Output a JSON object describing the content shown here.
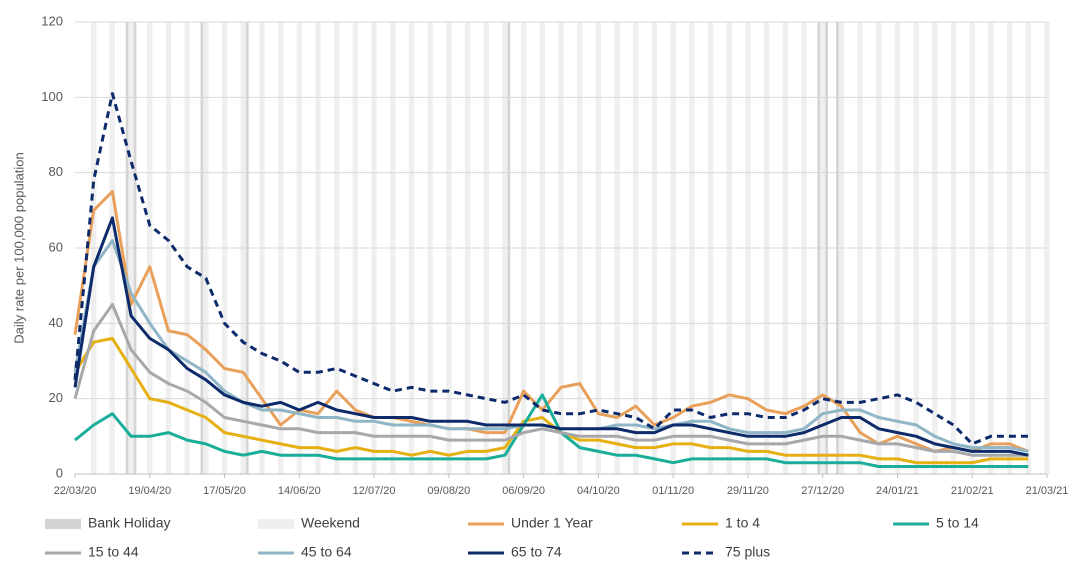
{
  "chart_data": {
    "type": "line",
    "y_label": "Daily rate per 100,000 population",
    "x": [
      "22/03/20",
      "29/03/20",
      "05/04/20",
      "12/04/20",
      "19/04/20",
      "26/04/20",
      "03/05/20",
      "10/05/20",
      "17/05/20",
      "24/05/20",
      "31/05/20",
      "07/06/20",
      "14/06/20",
      "21/06/20",
      "28/06/20",
      "05/07/20",
      "12/07/20",
      "19/07/20",
      "26/07/20",
      "02/08/20",
      "09/08/20",
      "16/08/20",
      "23/08/20",
      "30/08/20",
      "06/09/20",
      "13/09/20",
      "20/09/20",
      "27/09/20",
      "04/10/20",
      "11/10/20",
      "18/10/20",
      "25/10/20",
      "01/11/20",
      "08/11/20",
      "15/11/20",
      "22/11/20",
      "29/11/20",
      "06/12/20",
      "13/12/20",
      "20/12/20",
      "27/12/20",
      "03/01/21",
      "10/01/21",
      "17/01/21",
      "24/01/21",
      "31/01/21",
      "07/02/21",
      "14/02/21",
      "21/02/21",
      "28/02/21",
      "07/03/21",
      "14/03/21"
    ],
    "xlim": [
      "22/03/20",
      "21/03/21"
    ],
    "xticks": [
      "22/03/20",
      "19/04/20",
      "17/05/20",
      "14/06/20",
      "12/07/20",
      "09/08/20",
      "06/09/20",
      "04/10/20",
      "01/11/20",
      "29/11/20",
      "27/12/20",
      "24/01/21",
      "21/02/21",
      "21/03/21"
    ],
    "ylim": [
      0,
      120
    ],
    "yticks": [
      0,
      20,
      40,
      60,
      80,
      100,
      120
    ],
    "grid": true,
    "shading": [
      {
        "name": "Bank Holiday",
        "color": "#d4d4d4",
        "dates": [
          "10/04/20",
          "13/04/20",
          "08/05/20",
          "25/05/20",
          "31/08/20",
          "25/12/20",
          "28/12/20",
          "01/01/21"
        ]
      },
      {
        "name": "Weekend",
        "color": "#efefef"
      }
    ],
    "series": [
      {
        "name": "Under 1 Year",
        "color": "#e8a05a",
        "values": [
          37,
          70,
          75,
          45,
          55,
          38,
          37,
          33,
          28,
          27,
          20,
          13,
          17,
          16,
          22,
          17,
          15,
          15,
          14,
          13,
          12,
          12,
          11,
          11,
          22,
          17,
          23,
          24,
          16,
          15,
          18,
          13,
          15,
          18,
          19,
          21,
          20,
          17,
          16,
          18,
          21,
          18,
          11,
          8,
          10,
          8,
          6,
          7,
          6,
          8,
          8,
          6
        ]
      },
      {
        "name": "1 to 4",
        "color": "#e6b012",
        "values": [
          27,
          35,
          36,
          28,
          20,
          19,
          17,
          15,
          11,
          10,
          9,
          8,
          7,
          7,
          6,
          7,
          6,
          6,
          5,
          6,
          5,
          6,
          6,
          7,
          14,
          15,
          11,
          9,
          9,
          8,
          7,
          7,
          8,
          8,
          7,
          7,
          6,
          6,
          5,
          5,
          5,
          5,
          5,
          4,
          4,
          3,
          3,
          3,
          3,
          4,
          4,
          4
        ]
      },
      {
        "name": "5 to 14",
        "color": "#1aae9a",
        "values": [
          9,
          13,
          16,
          10,
          10,
          11,
          9,
          8,
          6,
          5,
          6,
          5,
          5,
          5,
          4,
          4,
          4,
          4,
          4,
          4,
          4,
          4,
          4,
          5,
          13,
          21,
          11,
          7,
          6,
          5,
          5,
          4,
          3,
          4,
          4,
          4,
          4,
          4,
          3,
          3,
          3,
          3,
          3,
          2,
          2,
          2,
          2,
          2,
          2,
          2,
          2,
          2
        ]
      },
      {
        "name": "15 to 44",
        "color": "#a6a8ab",
        "values": [
          20,
          38,
          45,
          33,
          27,
          24,
          22,
          19,
          15,
          14,
          13,
          12,
          12,
          11,
          11,
          11,
          10,
          10,
          10,
          10,
          9,
          9,
          9,
          9,
          11,
          12,
          11,
          10,
          10,
          10,
          9,
          9,
          10,
          10,
          10,
          9,
          8,
          8,
          8,
          9,
          10,
          10,
          9,
          8,
          8,
          7,
          6,
          6,
          5,
          5,
          5,
          5
        ]
      },
      {
        "name": "45 to 64",
        "color": "#8fb6c6",
        "values": [
          27,
          55,
          62,
          48,
          40,
          33,
          30,
          27,
          22,
          19,
          17,
          17,
          16,
          15,
          15,
          14,
          14,
          13,
          13,
          13,
          12,
          12,
          12,
          12,
          13,
          13,
          12,
          12,
          12,
          13,
          13,
          12,
          13,
          14,
          14,
          12,
          11,
          11,
          11,
          12,
          16,
          17,
          17,
          15,
          14,
          13,
          10,
          8,
          7,
          7,
          7,
          6
        ]
      },
      {
        "name": "65 to 74",
        "color": "#0d2a6b",
        "values": [
          23,
          55,
          68,
          42,
          36,
          33,
          28,
          25,
          21,
          19,
          18,
          19,
          17,
          19,
          17,
          16,
          15,
          15,
          15,
          14,
          14,
          14,
          13,
          13,
          13,
          13,
          12,
          12,
          12,
          12,
          11,
          11,
          13,
          13,
          12,
          11,
          10,
          10,
          10,
          11,
          13,
          15,
          15,
          12,
          11,
          10,
          8,
          7,
          6,
          6,
          6,
          5
        ]
      },
      {
        "name": "75 plus",
        "color": "#0d2a6b",
        "style": "dashed",
        "values": [
          25,
          78,
          101,
          83,
          66,
          62,
          55,
          52,
          40,
          35,
          32,
          30,
          27,
          27,
          28,
          26,
          24,
          22,
          23,
          22,
          22,
          21,
          20,
          19,
          21,
          17,
          16,
          16,
          17,
          16,
          15,
          12,
          17,
          17,
          15,
          16,
          16,
          15,
          15,
          17,
          20,
          19,
          19,
          20,
          21,
          19,
          16,
          13,
          8,
          10,
          10,
          10
        ]
      }
    ]
  }
}
